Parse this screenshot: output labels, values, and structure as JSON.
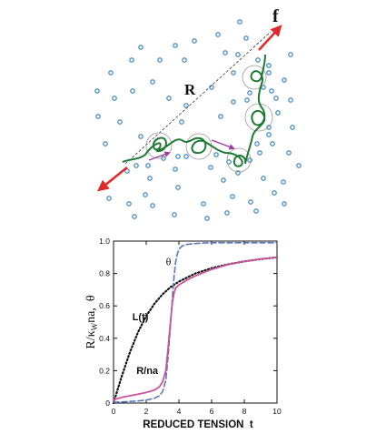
{
  "illustration": {
    "force_label": "f",
    "end_to_end_label": "R",
    "colors": {
      "force_arrow": "#e02a2a",
      "bead": "#4a8fc4",
      "chain": "#1e7a33",
      "step_arrow": "#9a3fa0",
      "dashed_line": "#333333",
      "circle": "#999999"
    }
  },
  "chart_data": {
    "type": "line",
    "xlabel": "REDUCED TENSION  t",
    "ylabel": "R/κ",
    "ylabel_sub": "W",
    "ylabel_rest": "na,  θ",
    "xlim": [
      0,
      10
    ],
    "ylim": [
      0,
      1.0
    ],
    "xticks": [
      0,
      2,
      4,
      6,
      8,
      10
    ],
    "yticks": [
      0,
      0.2,
      0.4,
      0.6,
      0.8,
      1.0
    ],
    "ytick_labels": [
      "0",
      "0.2",
      "0.4",
      "0.6",
      "0.8",
      "1.0"
    ],
    "grid": false,
    "annotations": [
      {
        "text": "θ",
        "x": 3.2,
        "y": 0.85
      },
      {
        "text": "L(t)",
        "x": 1.15,
        "y": 0.51
      },
      {
        "text": "R/na",
        "x": 1.4,
        "y": 0.18
      }
    ],
    "series": [
      {
        "name": "L(t)",
        "style": "dotted",
        "color": "#111111",
        "x": [
          0,
          0.25,
          0.5,
          0.75,
          1,
          1.5,
          2,
          2.5,
          3,
          3.5,
          4,
          5,
          6,
          7,
          8,
          9,
          10
        ],
        "y": [
          0,
          0.083,
          0.164,
          0.24,
          0.313,
          0.438,
          0.537,
          0.613,
          0.672,
          0.717,
          0.75,
          0.8,
          0.833,
          0.857,
          0.875,
          0.889,
          0.9
        ]
      },
      {
        "name": "θ",
        "style": "dashed",
        "color": "#5a78b8",
        "x": [
          0,
          0.5,
          1,
          1.5,
          2,
          2.5,
          2.8,
          3.0,
          3.2,
          3.35,
          3.5,
          3.6,
          3.7,
          3.8,
          3.9,
          4.0,
          4.2,
          4.5,
          5,
          5.5,
          6,
          7,
          8,
          9,
          10
        ],
        "y": [
          0.005,
          0.007,
          0.01,
          0.013,
          0.018,
          0.03,
          0.045,
          0.07,
          0.14,
          0.3,
          0.5,
          0.65,
          0.78,
          0.87,
          0.92,
          0.95,
          0.97,
          0.98,
          0.985,
          0.988,
          0.99,
          0.99,
          0.99,
          0.99,
          0.99
        ]
      },
      {
        "name": "R/na",
        "style": "solid",
        "color": "#c9549a",
        "x": [
          0,
          0.5,
          1,
          1.5,
          2,
          2.5,
          2.8,
          3.0,
          3.2,
          3.35,
          3.5,
          3.6,
          3.7,
          3.8,
          4.0,
          4.5,
          5,
          6,
          7,
          8,
          9,
          10
        ],
        "y": [
          0.02,
          0.035,
          0.045,
          0.055,
          0.065,
          0.08,
          0.1,
          0.13,
          0.2,
          0.35,
          0.52,
          0.62,
          0.68,
          0.71,
          0.73,
          0.76,
          0.785,
          0.825,
          0.855,
          0.875,
          0.89,
          0.9
        ]
      }
    ]
  }
}
